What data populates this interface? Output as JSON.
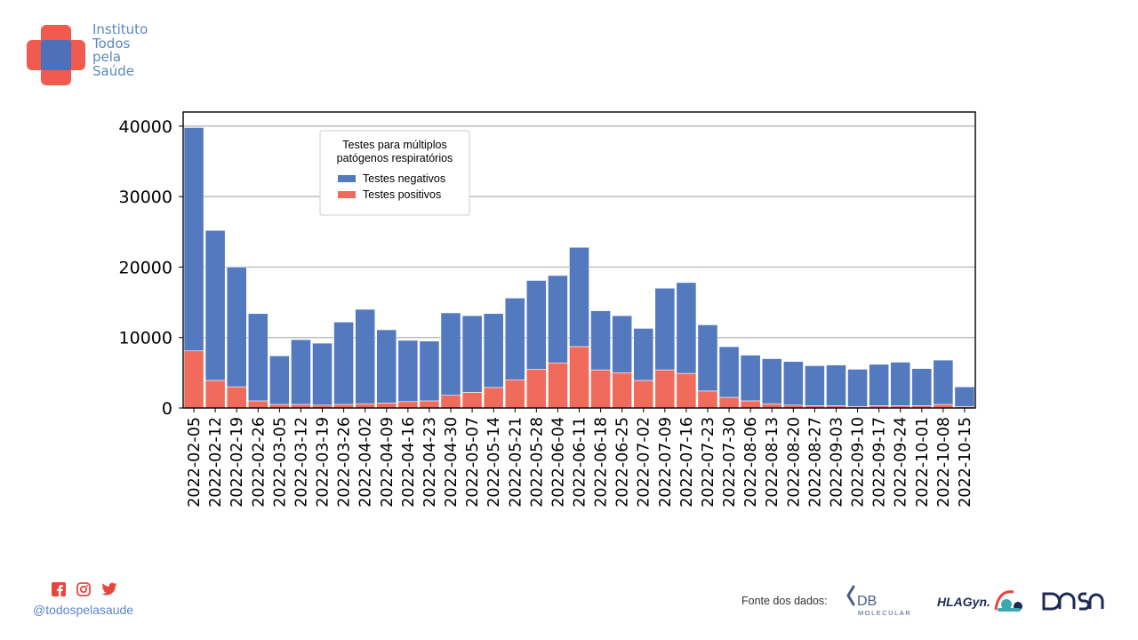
{
  "brand": {
    "name_lines": [
      "Instituto",
      "Todos",
      "pela",
      "Saúde"
    ]
  },
  "footer": {
    "handle": "@todospelasaude",
    "fonte_label": "Fonte dos dados:",
    "sponsors": [
      "DB",
      "MOLECULAR",
      "HLAGyn",
      "DASA"
    ],
    "social_icons": [
      "facebook-icon",
      "instagram-icon",
      "twitter-icon"
    ]
  },
  "colors": {
    "brand_blue": "#5b86c6",
    "brand_red": "#f05a4f",
    "negativos": "#5379be",
    "positivos": "#f16b5d"
  },
  "chart_data": {
    "type": "bar",
    "stacked": true,
    "legend": {
      "title_lines": [
        "Testes para múltiplos",
        "patógenos respiratórios"
      ],
      "placement": "upper-center-left"
    },
    "categories": [
      "2022-02-05",
      "2022-02-12",
      "2022-02-19",
      "2022-02-26",
      "2022-03-05",
      "2022-03-12",
      "2022-03-19",
      "2022-03-26",
      "2022-04-02",
      "2022-04-09",
      "2022-04-16",
      "2022-04-23",
      "2022-04-30",
      "2022-05-07",
      "2022-05-14",
      "2022-05-21",
      "2022-05-28",
      "2022-06-04",
      "2022-06-11",
      "2022-06-18",
      "2022-06-25",
      "2022-07-02",
      "2022-07-09",
      "2022-07-16",
      "2022-07-23",
      "2022-07-30",
      "2022-08-06",
      "2022-08-13",
      "2022-08-20",
      "2022-08-27",
      "2022-09-03",
      "2022-09-10",
      "2022-09-17",
      "2022-09-24",
      "2022-10-01",
      "2022-10-08",
      "2022-10-15"
    ],
    "series": [
      {
        "name": "Testes positivos",
        "color": "#f16b5d",
        "values": [
          8100,
          3900,
          3000,
          1000,
          500,
          500,
          400,
          500,
          600,
          700,
          900,
          1000,
          1800,
          2200,
          2900,
          4000,
          5500,
          6400,
          8700,
          5400,
          5000,
          3900,
          5400,
          4900,
          2400,
          1500,
          1000,
          600,
          400,
          300,
          300,
          200,
          300,
          300,
          300,
          500,
          200
        ]
      },
      {
        "name": "Testes negativos",
        "color": "#5379be",
        "values": [
          31700,
          21300,
          17000,
          12400,
          6900,
          9200,
          8800,
          11700,
          13400,
          10400,
          8700,
          8500,
          11700,
          10900,
          10500,
          11600,
          12600,
          12400,
          14100,
          8400,
          8100,
          7400,
          11600,
          12900,
          9400,
          7200,
          6500,
          6400,
          6200,
          5700,
          5800,
          5300,
          5900,
          6200,
          5300,
          6300,
          2800
        ]
      }
    ],
    "ylim": [
      0,
      42000
    ],
    "yticks": [
      0,
      10000,
      20000,
      30000,
      40000
    ],
    "ytick_labels": [
      "0",
      "10000",
      "20000",
      "30000",
      "40000"
    ],
    "grid": "y",
    "xlabel": "",
    "ylabel": ""
  }
}
